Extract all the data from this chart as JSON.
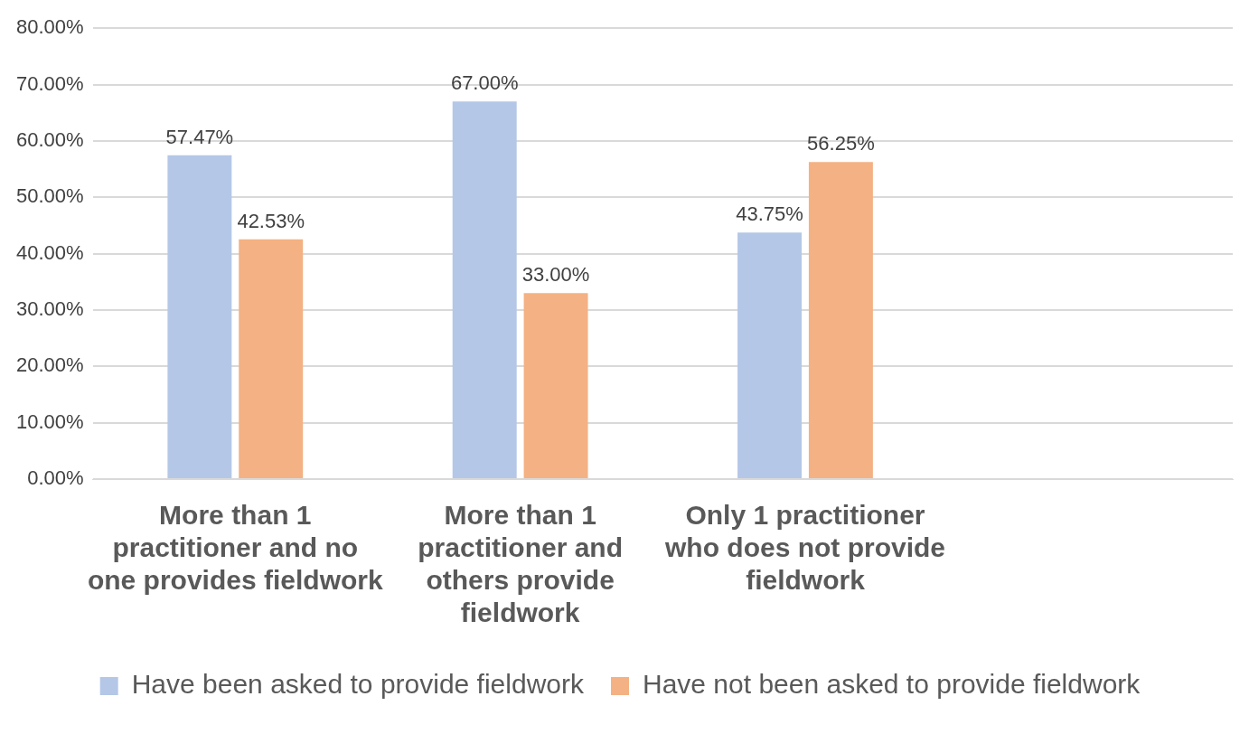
{
  "chart_data": {
    "type": "bar",
    "categories": [
      "More than 1 practitioner and no one provides fieldwork",
      "More than 1 practitioner and others provide fieldwork",
      "Only 1 practitioner who does not provide fieldwork",
      null
    ],
    "series": [
      {
        "name": "Have been asked to provide fieldwork",
        "color": "#b4c7e7",
        "values": [
          57.47,
          67.0,
          43.75,
          null
        ],
        "value_labels": [
          "57.47%",
          "67.00%",
          "43.75%",
          null
        ]
      },
      {
        "name": "Have not been asked to provide fieldwork",
        "color": "#f4b183",
        "values": [
          42.53,
          33.0,
          56.25,
          null
        ],
        "value_labels": [
          "42.53%",
          "33.00%",
          "56.25%",
          null
        ]
      }
    ],
    "ylim": [
      0,
      80
    ],
    "yticks": [
      {
        "value": 0,
        "label": "0.00%"
      },
      {
        "value": 10,
        "label": "10.00%"
      },
      {
        "value": 20,
        "label": "20.00%"
      },
      {
        "value": 30,
        "label": "30.00%"
      },
      {
        "value": 40,
        "label": "40.00%"
      },
      {
        "value": 50,
        "label": "50.00%"
      },
      {
        "value": 60,
        "label": "60.00%"
      },
      {
        "value": 70,
        "label": "70.00%"
      },
      {
        "value": 80,
        "label": "80.00%"
      }
    ],
    "grid": "y",
    "legend": "bottom"
  }
}
